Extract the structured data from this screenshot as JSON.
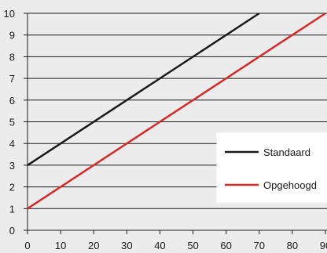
{
  "chart_data": {
    "type": "line",
    "title": "",
    "xlabel": "",
    "ylabel": "",
    "xlim": [
      0,
      90
    ],
    "ylim": [
      0,
      10
    ],
    "x_ticks": [
      0,
      10,
      20,
      30,
      40,
      50,
      60,
      70,
      80,
      90
    ],
    "y_ticks": [
      0,
      1,
      2,
      3,
      4,
      5,
      6,
      7,
      8,
      9,
      10
    ],
    "grid": "horizontal",
    "legend_position": "bottom-right",
    "series": [
      {
        "name": "Standaard",
        "color": "#1a1a1a",
        "x": [
          0,
          70
        ],
        "y": [
          3,
          10
        ]
      },
      {
        "name": "Opgehoogd",
        "color": "#d42a2a",
        "x": [
          0,
          90
        ],
        "y": [
          1,
          10
        ]
      }
    ]
  }
}
